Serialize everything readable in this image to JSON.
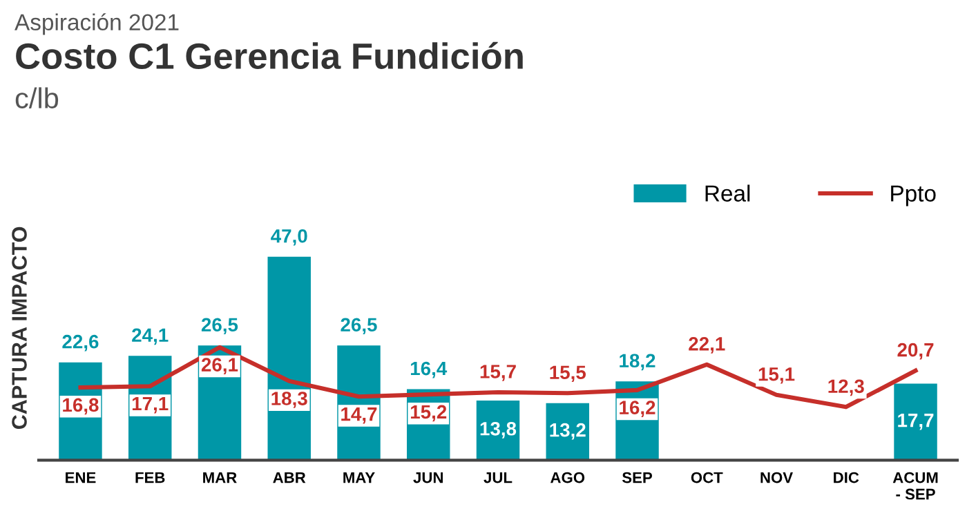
{
  "chart_data": {
    "type": "bar",
    "title": "Costo C1 Gerencia Fundición",
    "subtitle": "Aspiración 2021",
    "annotations": [
      "c/lb"
    ],
    "ylabel": "CAPTURA IMPACTO",
    "categories": [
      "ENE",
      "FEB",
      "MAR",
      "ABR",
      "MAY",
      "JUN",
      "JUL",
      "AGO",
      "SEP",
      "OCT",
      "NOV",
      "DIC",
      "ACUM\n- SEP"
    ],
    "series": [
      {
        "name": "Real",
        "color": "#0097a7",
        "values": [
          22.6,
          24.1,
          26.5,
          47.0,
          26.5,
          16.4,
          13.8,
          13.2,
          18.2,
          null,
          null,
          null,
          17.7
        ],
        "value_labels": [
          "22,6",
          "24,1",
          "26,5",
          "47,0",
          "26,5",
          "16,4",
          "13,8",
          "13,2",
          "18,2",
          null,
          null,
          null,
          "17,7"
        ]
      },
      {
        "name": "Ppto",
        "type": "line",
        "color": "#c62f2a",
        "values": [
          16.8,
          17.1,
          26.1,
          18.3,
          14.7,
          15.2,
          15.7,
          15.5,
          16.2,
          22.1,
          15.1,
          12.3,
          20.7
        ],
        "value_labels": [
          "16,8",
          "17,1",
          "26,1",
          "18,3",
          "14,7",
          "15,2",
          "15,7",
          "15,5",
          "16,2",
          "22,1",
          "15,1",
          "12,3",
          "20,7"
        ]
      }
    ],
    "legend": "top right",
    "grid": false,
    "marker": "none",
    "line_style": "solid"
  }
}
